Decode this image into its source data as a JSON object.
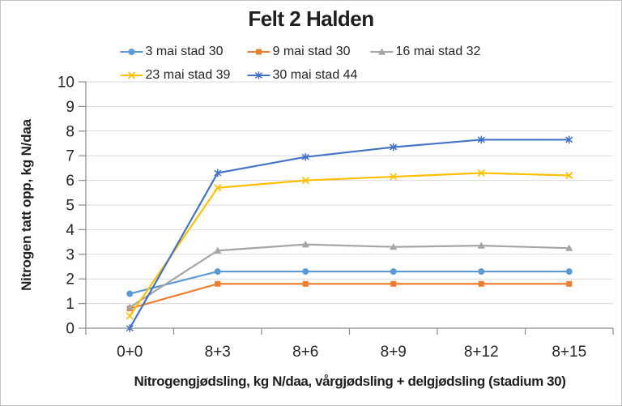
{
  "chart_data": {
    "type": "line",
    "title": "Felt 2 Halden",
    "xlabel": "Nitrogengjødsling, kg N/daa, vårgjødsling + delgjødsling (stadium 30)",
    "ylabel": "Nitrogen tatt opp, kg N/daa",
    "categories": [
      "0+0",
      "8+3",
      "8+6",
      "8+9",
      "8+12",
      "8+15"
    ],
    "ylim": [
      0,
      10
    ],
    "yticks": [
      0,
      1,
      2,
      3,
      4,
      5,
      6,
      7,
      8,
      9,
      10
    ],
    "grid": true,
    "legend_position": "top",
    "legend_columns": 3,
    "gridline_color": "#d9d9d9",
    "axis_color": "#8c8c8c",
    "series": [
      {
        "name": "3 mai stad 30",
        "color": "#5B9BD5",
        "marker": "circle",
        "values": [
          1.4,
          2.3,
          2.3,
          2.3,
          2.3,
          2.3
        ]
      },
      {
        "name": "9 mai stad 30",
        "color": "#ED7D31",
        "marker": "square",
        "values": [
          0.8,
          1.8,
          1.8,
          1.8,
          1.8,
          1.8
        ]
      },
      {
        "name": "16 mai stad 32",
        "color": "#A5A5A5",
        "marker": "triangle",
        "values": [
          0.85,
          3.15,
          3.4,
          3.3,
          3.35,
          3.25
        ]
      },
      {
        "name": "23 mai stad 39",
        "color": "#FFC000",
        "marker": "x",
        "values": [
          0.5,
          5.7,
          6.0,
          6.15,
          6.3,
          6.2
        ]
      },
      {
        "name": "30 mai stad 44",
        "color": "#4472C4",
        "marker": "asterisk",
        "values": [
          0.0,
          6.3,
          6.95,
          7.35,
          7.65,
          7.65
        ]
      }
    ]
  }
}
